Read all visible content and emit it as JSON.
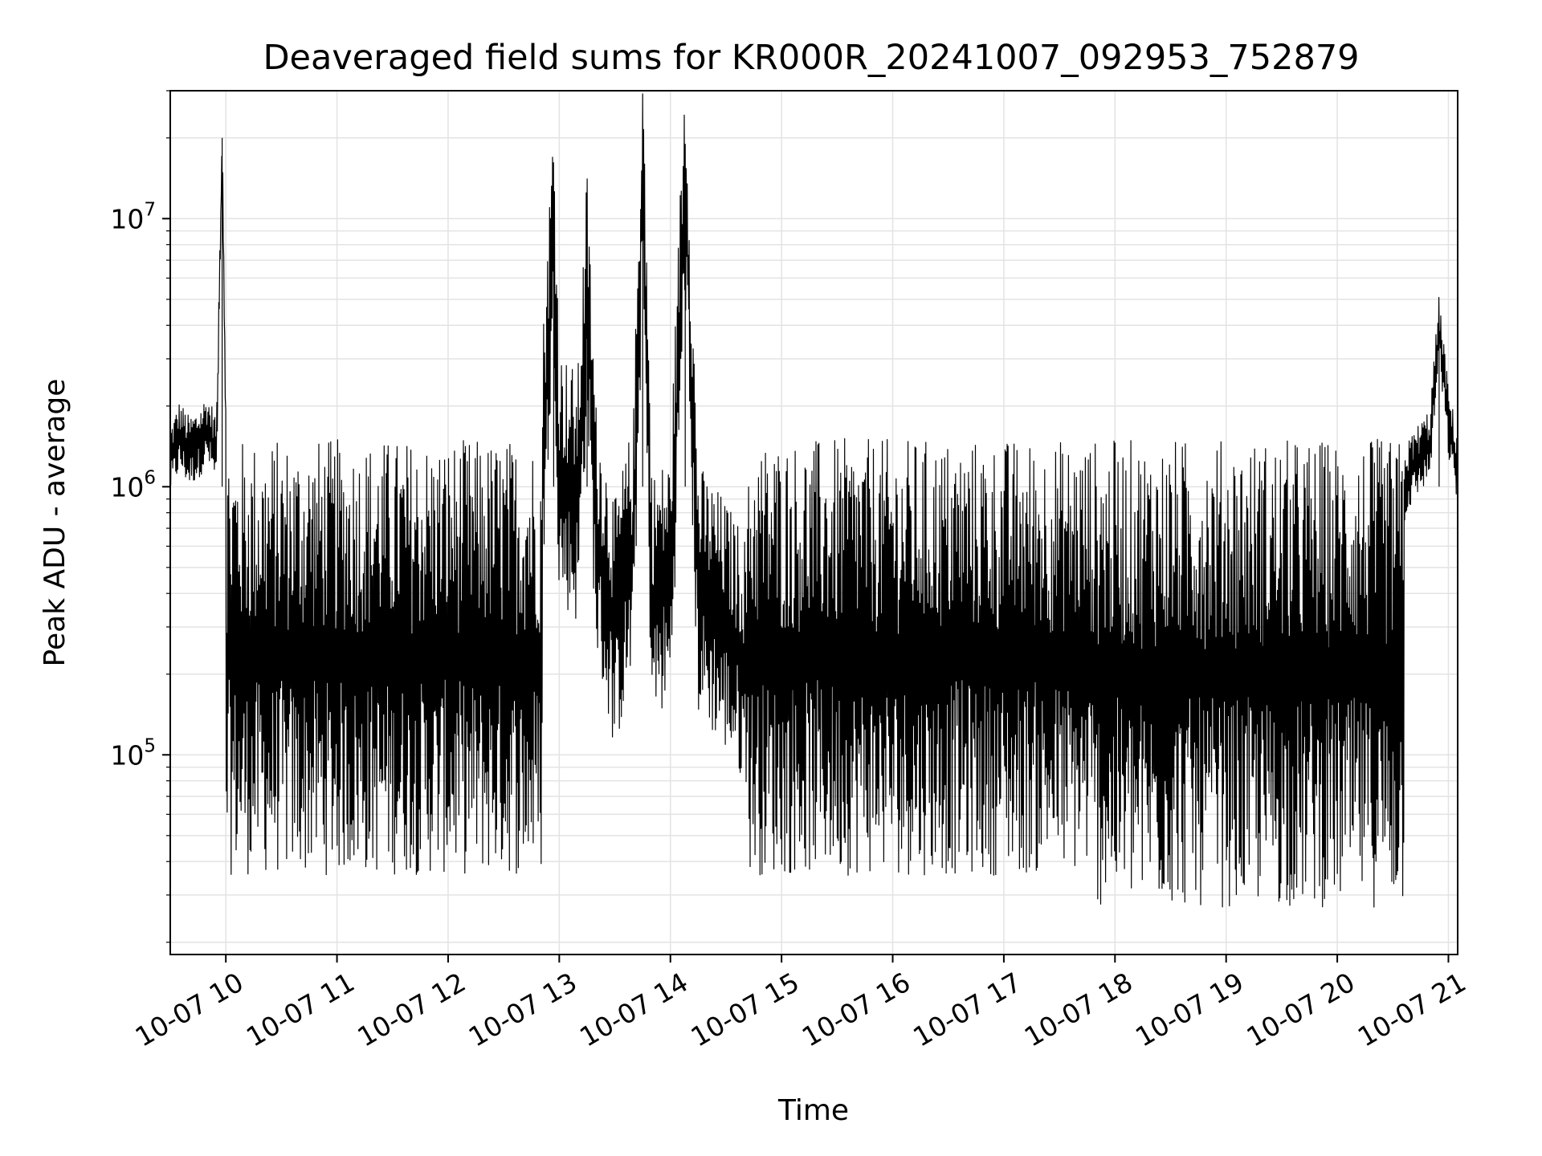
{
  "chart_data": {
    "type": "line",
    "title": "Deaveraged field sums for KR000R_20241007_092953_752879",
    "xlabel": "Time",
    "ylabel": "Peak ADU - average",
    "yscale": "log",
    "ylim": [
      18000,
      30000000
    ],
    "xlim": [
      "2024-10-07 09:30",
      "2024-10-07 21:05"
    ],
    "grid": true,
    "line_color": "#000000",
    "x_ticks": [
      "10-07 10",
      "10-07 11",
      "10-07 12",
      "10-07 13",
      "10-07 14",
      "10-07 15",
      "10-07 16",
      "10-07 17",
      "10-07 18",
      "10-07 19",
      "10-07 20",
      "10-07 21"
    ],
    "y_ticks": [
      {
        "base": "10",
        "exp": "5",
        "value": 100000
      },
      {
        "base": "10",
        "exp": "6",
        "value": 1000000
      },
      {
        "base": "10",
        "exp": "7",
        "value": 10000000
      }
    ],
    "series": [
      {
        "values_note_absent": "",
        "x": [
          "2024-10-07 09:30",
          "2024-10-07 09:35",
          "2024-10-07 09:40",
          "2024-10-07 09:45",
          "2024-10-07 09:50",
          "2024-10-07 09:55",
          "2024-10-07 09:58",
          "2024-10-07 10:00",
          "2024-10-07 10:01",
          "2024-10-07 10:05",
          "2024-10-07 10:10",
          "2024-10-07 10:15",
          "2024-10-07 10:20",
          "2024-10-07 10:25",
          "2024-10-07 10:30",
          "2024-10-07 10:40",
          "2024-10-07 10:50",
          "2024-10-07 11:00",
          "2024-10-07 11:10",
          "2024-10-07 11:20",
          "2024-10-07 11:30",
          "2024-10-07 11:40",
          "2024-10-07 11:50",
          "2024-10-07 12:00",
          "2024-10-07 12:10",
          "2024-10-07 12:20",
          "2024-10-07 12:30",
          "2024-10-07 12:40",
          "2024-10-07 12:50",
          "2024-10-07 12:57",
          "2024-10-07 13:00",
          "2024-10-07 13:10",
          "2024-10-07 13:15",
          "2024-10-07 13:20",
          "2024-10-07 13:30",
          "2024-10-07 13:40",
          "2024-10-07 13:45",
          "2024-10-07 13:50",
          "2024-10-07 14:00",
          "2024-10-07 14:08",
          "2024-10-07 14:15",
          "2024-10-07 14:20",
          "2024-10-07 14:30",
          "2024-10-07 14:40",
          "2024-10-07 14:50",
          "2024-10-07 15:00",
          "2024-10-07 15:30",
          "2024-10-07 16:00",
          "2024-10-07 16:30",
          "2024-10-07 17:00",
          "2024-10-07 17:30",
          "2024-10-07 18:00",
          "2024-10-07 18:30",
          "2024-10-07 19:00",
          "2024-10-07 19:30",
          "2024-10-07 19:50",
          "2024-10-07 20:00",
          "2024-10-07 20:15",
          "2024-10-07 20:30",
          "2024-10-07 20:40",
          "2024-10-07 20:50",
          "2024-10-07 20:55",
          "2024-10-07 21:00",
          "2024-10-07 21:05"
        ],
        "y": [
          1300000,
          1600000,
          1400000,
          1500000,
          1700000,
          1400000,
          20000000,
          1600000,
          1200000,
          250000,
          300000,
          280000,
          120000,
          150000,
          200000,
          150000,
          600000,
          300000,
          120000,
          60000,
          55000,
          60000,
          55000,
          60000,
          200000,
          150000,
          100000,
          500000,
          1200000,
          12000000,
          1500000,
          1200000,
          7000000,
          900000,
          400000,
          800000,
          21000000,
          500000,
          600000,
          19000000,
          550000,
          500000,
          400000,
          300000,
          500000,
          60000,
          600000,
          50000,
          500000,
          80000,
          400000,
          100000,
          300000,
          50000,
          200000,
          60000,
          300000,
          400000,
          800000,
          1200000,
          1500000,
          4000000,
          1800000,
          1200000
        ]
      }
    ]
  }
}
